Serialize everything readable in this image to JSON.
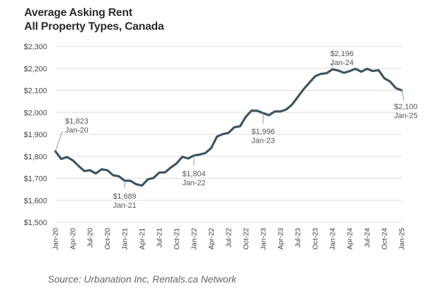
{
  "title_lines": [
    "Average Asking Rent",
    "All Property Types, Canada"
  ],
  "source": "Source: Urbanation Inc, Rentals.ca Network",
  "colors": {
    "line": "#3d5360",
    "grid": "#dddddd",
    "text": "#444444",
    "annotation": "#555555"
  },
  "chart_data": {
    "type": "line",
    "title": "Average Asking Rent",
    "subtitle": "All Property Types, Canada",
    "xlabel": "",
    "ylabel": "",
    "ylim": [
      1500,
      2300
    ],
    "grid": true,
    "yticks": [
      1500,
      1600,
      1700,
      1800,
      1900,
      2000,
      2100,
      2200,
      2300
    ],
    "ytick_labels": [
      "$1,500",
      "$1,600",
      "$1,700",
      "$1,800",
      "$1,900",
      "$2,000",
      "$2,100",
      "$2,200",
      "$2,300"
    ],
    "x": [
      "Jan-20",
      "Feb-20",
      "Mar-20",
      "Apr-20",
      "May-20",
      "Jun-20",
      "Jul-20",
      "Aug-20",
      "Sep-20",
      "Oct-20",
      "Nov-20",
      "Dec-20",
      "Jan-21",
      "Feb-21",
      "Mar-21",
      "Apr-21",
      "May-21",
      "Jun-21",
      "Jul-21",
      "Aug-21",
      "Sep-21",
      "Oct-21",
      "Nov-21",
      "Dec-21",
      "Jan-22",
      "Feb-22",
      "Mar-22",
      "Apr-22",
      "May-22",
      "Jun-22",
      "Jul-22",
      "Aug-22",
      "Sep-22",
      "Oct-22",
      "Nov-22",
      "Dec-22",
      "Jan-23",
      "Feb-23",
      "Mar-23",
      "Apr-23",
      "May-23",
      "Jun-23",
      "Jul-23",
      "Aug-23",
      "Sep-23",
      "Oct-23",
      "Nov-23",
      "Dec-23",
      "Jan-24",
      "Feb-24",
      "Mar-24",
      "Apr-24",
      "May-24",
      "Jun-24",
      "Jul-24",
      "Aug-24",
      "Sep-24",
      "Oct-24",
      "Nov-24",
      "Dec-24",
      "Jan-25"
    ],
    "xtick_labels": [
      "Jan-20",
      "Apr-20",
      "Jul-20",
      "Oct-20",
      "Jan-21",
      "Apr-21",
      "Jul-21",
      "Oct-21",
      "Jan-22",
      "Apr-22",
      "Jul-22",
      "Oct-22",
      "Jan-23",
      "Apr-23",
      "Jul-23",
      "Oct-23",
      "Jan-24",
      "Apr-24",
      "Jul-24",
      "Oct-24",
      "Jan-25"
    ],
    "series": [
      {
        "values": [
          1823,
          1788,
          1797,
          1782,
          1757,
          1733,
          1737,
          1722,
          1741,
          1737,
          1714,
          1709,
          1689,
          1689,
          1673,
          1667,
          1695,
          1702,
          1726,
          1727,
          1749,
          1768,
          1798,
          1790,
          1804,
          1808,
          1815,
          1838,
          1890,
          1901,
          1907,
          1932,
          1937,
          1980,
          2008,
          2007,
          1996,
          1987,
          2004,
          2004,
          2013,
          2035,
          2070,
          2105,
          2135,
          2164,
          2175,
          2178,
          2196,
          2190,
          2180,
          2188,
          2198,
          2185,
          2198,
          2188,
          2192,
          2155,
          2140,
          2110,
          2100
        ]
      }
    ],
    "annotations": [
      {
        "x": "Jan-20",
        "value_label": "$1,823",
        "date_label": "Jan-20"
      },
      {
        "x": "Jan-21",
        "value_label": "$1,689",
        "date_label": "Jan-21"
      },
      {
        "x": "Jan-22",
        "value_label": "$1,804",
        "date_label": "Jan-22"
      },
      {
        "x": "Jan-23",
        "value_label": "$1,996",
        "date_label": "Jan-23"
      },
      {
        "x": "Jan-24",
        "value_label": "$2,196",
        "date_label": "Jan-24"
      },
      {
        "x": "Jan-25",
        "value_label": "$2,100",
        "date_label": "Jan-25"
      }
    ]
  }
}
